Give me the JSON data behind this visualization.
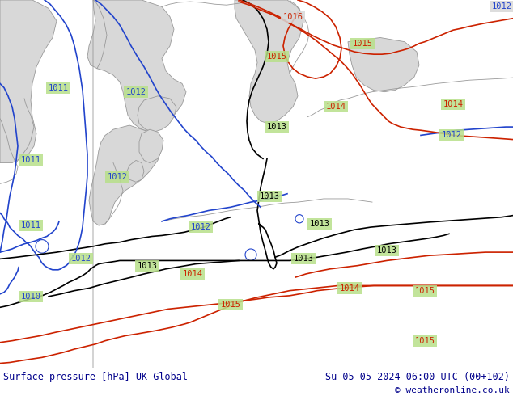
{
  "title_left": "Surface pressure [hPa] UK-Global",
  "title_right": "Su 05-05-2024 06:00 UTC (00+102)",
  "title_right2": "© weatheronline.co.uk",
  "bg_color": "#b8e08a",
  "gray_color": "#c8c8c8",
  "sea_color": "#d8d8d8",
  "white_bg": "#ffffff",
  "black_line_color": "#000000",
  "blue_line_color": "#2244cc",
  "red_line_color": "#cc2200",
  "gray_line_color": "#999999",
  "title_color": "#00008b",
  "footer_bg": "#d8d8d8",
  "fig_width": 6.34,
  "fig_height": 4.9
}
